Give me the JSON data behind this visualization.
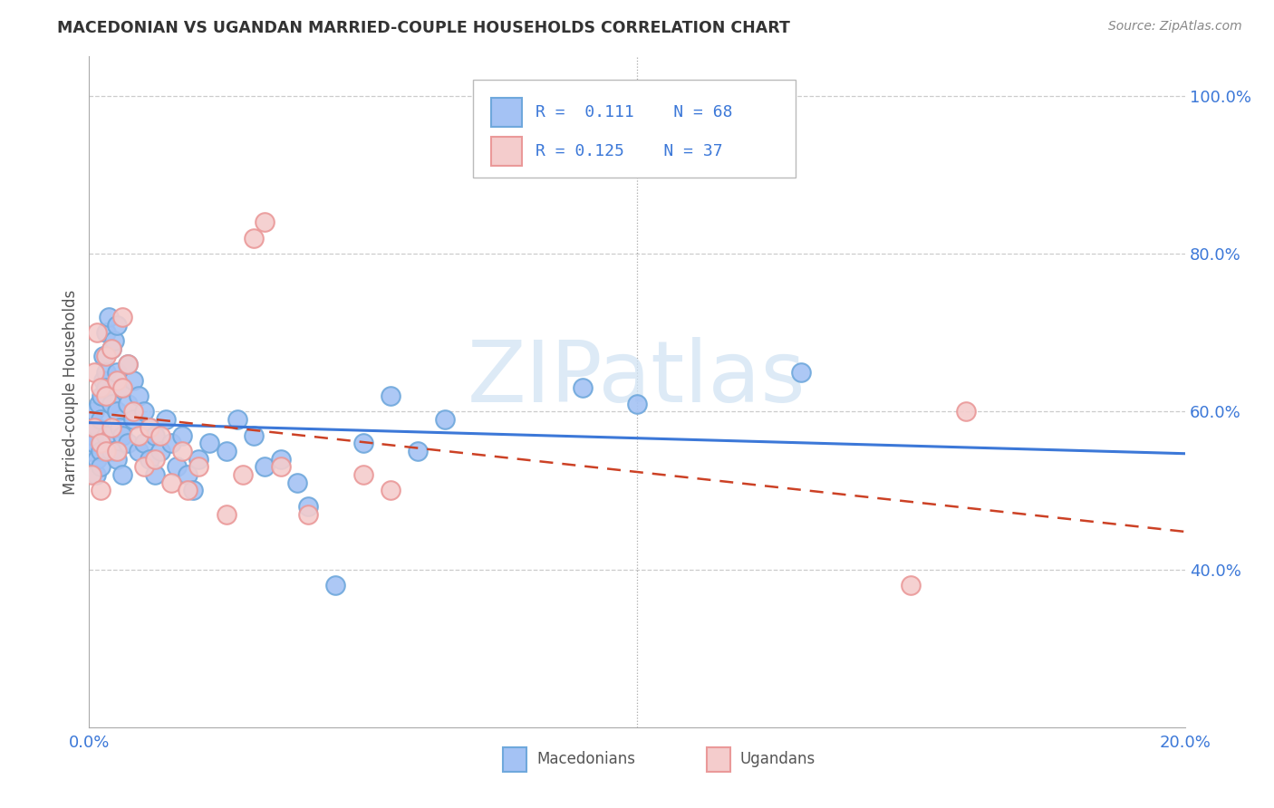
{
  "title": "MACEDONIAN VS UGANDAN MARRIED-COUPLE HOUSEHOLDS CORRELATION CHART",
  "source": "Source: ZipAtlas.com",
  "ylabel": "Married-couple Households",
  "xmin": 0.0,
  "xmax": 0.2,
  "ymin": 0.2,
  "ymax": 1.05,
  "xtick_vals": [
    0.0,
    0.04,
    0.08,
    0.12,
    0.16,
    0.2
  ],
  "xtick_labels": [
    "0.0%",
    "",
    "",
    "",
    "",
    "20.0%"
  ],
  "ytick_vals": [
    0.4,
    0.6,
    0.8,
    1.0
  ],
  "ytick_labels_right": [
    "40.0%",
    "60.0%",
    "80.0%",
    "100.0%"
  ],
  "macedonian_color_edge": "#6fa8dc",
  "macedonian_color_fill": "#a4c2f4",
  "ugandan_color_edge": "#ea9999",
  "ugandan_color_fill": "#f4cccc",
  "trend_macedonian_color": "#3c78d8",
  "trend_ugandan_color": "#cc4125",
  "R_macedonian": 0.111,
  "N_macedonian": 68,
  "R_ugandan": 0.125,
  "N_ugandan": 37,
  "macedonians_x": [
    0.0005,
    0.0008,
    0.001,
    0.001,
    0.0012,
    0.0015,
    0.0015,
    0.0018,
    0.002,
    0.002,
    0.002,
    0.0022,
    0.0025,
    0.0025,
    0.003,
    0.003,
    0.003,
    0.003,
    0.0035,
    0.004,
    0.004,
    0.004,
    0.0045,
    0.005,
    0.005,
    0.005,
    0.005,
    0.0055,
    0.006,
    0.006,
    0.006,
    0.007,
    0.007,
    0.007,
    0.008,
    0.008,
    0.009,
    0.009,
    0.01,
    0.01,
    0.011,
    0.011,
    0.012,
    0.012,
    0.013,
    0.014,
    0.015,
    0.016,
    0.017,
    0.018,
    0.019,
    0.02,
    0.022,
    0.025,
    0.027,
    0.03,
    0.032,
    0.035,
    0.038,
    0.04,
    0.045,
    0.05,
    0.055,
    0.06,
    0.065,
    0.09,
    0.1,
    0.13
  ],
  "macedonians_y": [
    0.55,
    0.57,
    0.6,
    0.56,
    0.52,
    0.58,
    0.54,
    0.61,
    0.59,
    0.55,
    0.53,
    0.62,
    0.67,
    0.64,
    0.65,
    0.7,
    0.63,
    0.57,
    0.72,
    0.68,
    0.61,
    0.55,
    0.69,
    0.65,
    0.71,
    0.6,
    0.54,
    0.58,
    0.63,
    0.57,
    0.52,
    0.66,
    0.61,
    0.56,
    0.64,
    0.59,
    0.62,
    0.55,
    0.6,
    0.56,
    0.58,
    0.54,
    0.57,
    0.52,
    0.55,
    0.59,
    0.56,
    0.53,
    0.57,
    0.52,
    0.5,
    0.54,
    0.56,
    0.55,
    0.59,
    0.57,
    0.53,
    0.54,
    0.51,
    0.48,
    0.38,
    0.56,
    0.62,
    0.55,
    0.59,
    0.63,
    0.61,
    0.65
  ],
  "ugandans_x": [
    0.0005,
    0.001,
    0.001,
    0.0015,
    0.002,
    0.002,
    0.002,
    0.003,
    0.003,
    0.003,
    0.004,
    0.004,
    0.005,
    0.005,
    0.006,
    0.006,
    0.007,
    0.008,
    0.009,
    0.01,
    0.011,
    0.012,
    0.013,
    0.015,
    0.017,
    0.018,
    0.02,
    0.025,
    0.028,
    0.03,
    0.032,
    0.035,
    0.04,
    0.05,
    0.055,
    0.15,
    0.16
  ],
  "ugandans_y": [
    0.52,
    0.65,
    0.58,
    0.7,
    0.63,
    0.56,
    0.5,
    0.67,
    0.62,
    0.55,
    0.68,
    0.58,
    0.64,
    0.55,
    0.72,
    0.63,
    0.66,
    0.6,
    0.57,
    0.53,
    0.58,
    0.54,
    0.57,
    0.51,
    0.55,
    0.5,
    0.53,
    0.47,
    0.52,
    0.82,
    0.84,
    0.53,
    0.47,
    0.52,
    0.5,
    0.38,
    0.6
  ],
  "grid_color": "#cccccc",
  "grid_linestyle": "--",
  "watermark_text": "ZIPatlas",
  "watermark_color": "#cfe2f3",
  "legend_text_color": "#3c78d8",
  "tick_color": "#3c78d8",
  "title_color": "#333333",
  "source_color": "#888888",
  "ylabel_color": "#555555"
}
